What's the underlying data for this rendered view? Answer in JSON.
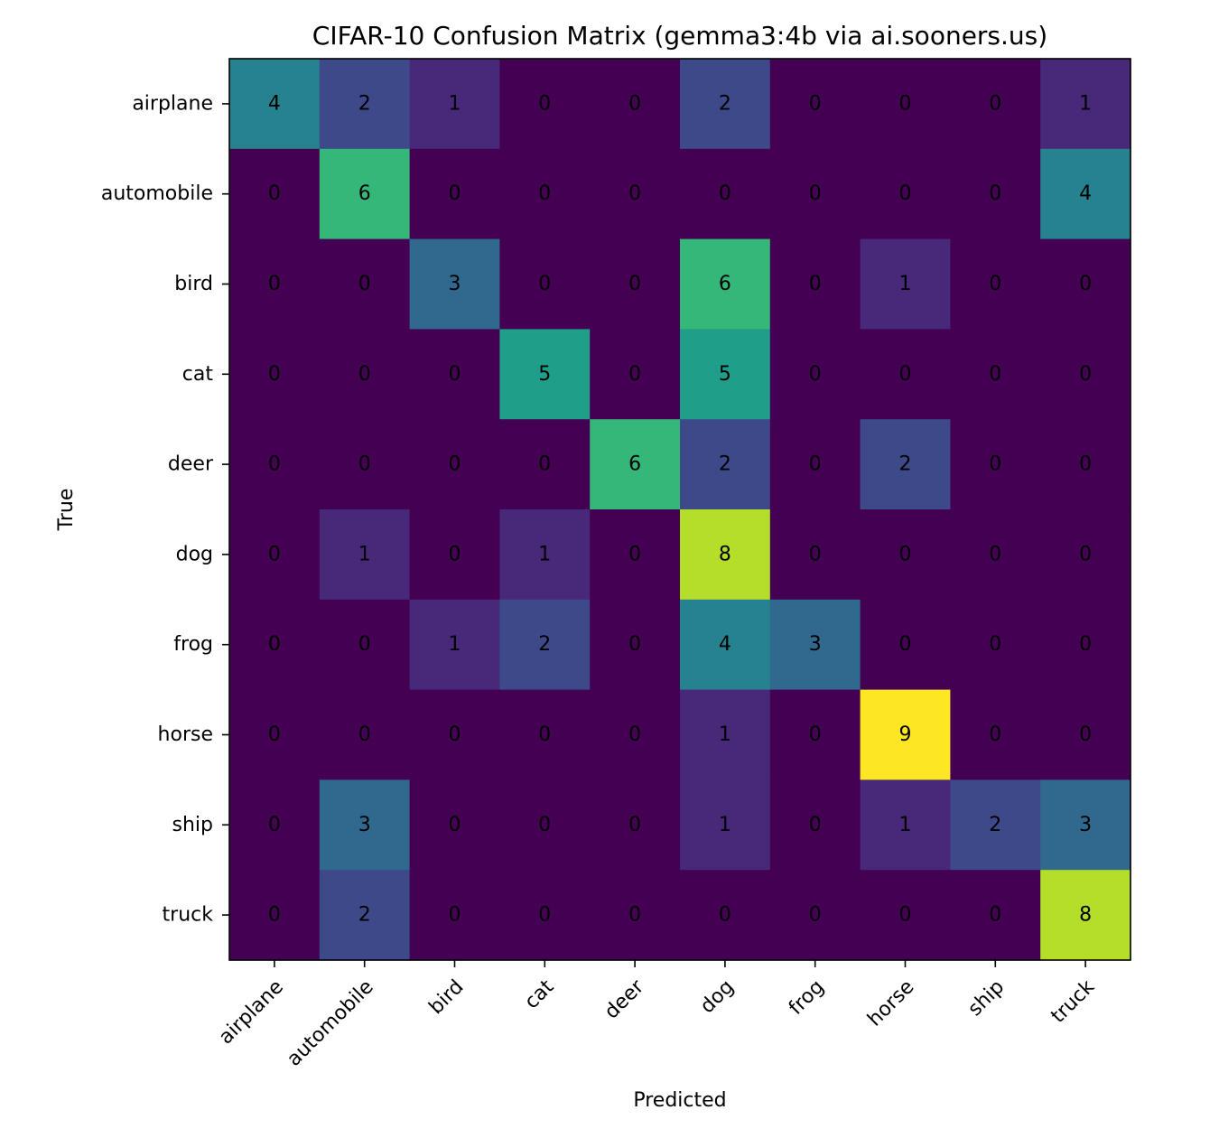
{
  "chart_data": {
    "type": "heatmap",
    "title": "CIFAR-10 Confusion Matrix (gemma3:4b via ai.sooners.us)",
    "xlabel": "Predicted",
    "ylabel": "True",
    "x_categories": [
      "airplane",
      "automobile",
      "bird",
      "cat",
      "deer",
      "dog",
      "frog",
      "horse",
      "ship",
      "truck"
    ],
    "y_categories": [
      "airplane",
      "automobile",
      "bird",
      "cat",
      "deer",
      "dog",
      "frog",
      "horse",
      "ship",
      "truck"
    ],
    "values": [
      [
        4,
        2,
        1,
        0,
        0,
        2,
        0,
        0,
        0,
        1
      ],
      [
        0,
        6,
        0,
        0,
        0,
        0,
        0,
        0,
        0,
        4
      ],
      [
        0,
        0,
        3,
        0,
        0,
        6,
        0,
        1,
        0,
        0
      ],
      [
        0,
        0,
        0,
        5,
        0,
        5,
        0,
        0,
        0,
        0
      ],
      [
        0,
        0,
        0,
        0,
        6,
        2,
        0,
        2,
        0,
        0
      ],
      [
        0,
        1,
        0,
        1,
        0,
        8,
        0,
        0,
        0,
        0
      ],
      [
        0,
        0,
        1,
        2,
        0,
        4,
        3,
        0,
        0,
        0
      ],
      [
        0,
        0,
        0,
        0,
        0,
        1,
        0,
        9,
        0,
        0
      ],
      [
        0,
        3,
        0,
        0,
        0,
        1,
        0,
        1,
        2,
        3
      ],
      [
        0,
        2,
        0,
        0,
        0,
        0,
        0,
        0,
        0,
        8
      ]
    ],
    "value_range": [
      0,
      9
    ],
    "colormap": "viridis",
    "colormap_stops": [
      "#440154",
      "#482878",
      "#3e4989",
      "#31688e",
      "#26828e",
      "#1f9e89",
      "#35b779",
      "#6ece58",
      "#b5de2b",
      "#fde725"
    ],
    "grid": false,
    "legend": "none"
  }
}
